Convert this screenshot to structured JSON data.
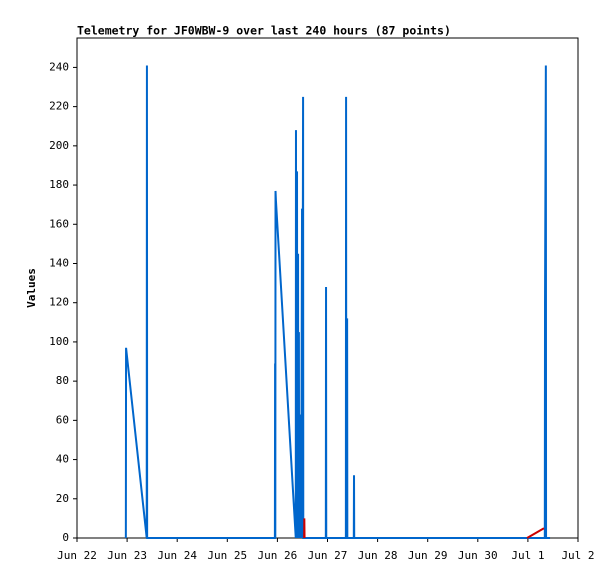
{
  "chart_data": {
    "type": "line",
    "title": "Telemetry for JF0WBW-9 over last 240 hours (87 points)",
    "y_label": "Values",
    "xlim": [
      0,
      240
    ],
    "xticks": [
      {
        "value": 0,
        "label": "Jun 22"
      },
      {
        "value": 24,
        "label": "Jun 23"
      },
      {
        "value": 48,
        "label": "Jun 24"
      },
      {
        "value": 72,
        "label": "Jun 25"
      },
      {
        "value": 96,
        "label": "Jun 26"
      },
      {
        "value": 120,
        "label": "Jun 27"
      },
      {
        "value": 144,
        "label": "Jun 28"
      },
      {
        "value": 168,
        "label": "Jun 29"
      },
      {
        "value": 192,
        "label": "Jun 30"
      },
      {
        "value": 216,
        "label": "Jul 1"
      },
      {
        "value": 240,
        "label": "Jul 2"
      }
    ],
    "ylim": [
      0,
      255
    ],
    "yticks": [
      0,
      20,
      40,
      60,
      80,
      100,
      120,
      140,
      160,
      180,
      200,
      220,
      240
    ],
    "grid": false,
    "series": [
      {
        "color": "#0066cc",
        "x": [
          23.4,
          23.5,
          33.4,
          33.5,
          33.6,
          94.8,
          94.9,
          95.0,
          95.1,
          95.3,
          104.8,
          104.9,
          105.0,
          105.4,
          105.5,
          105.9,
          106.0,
          106.3,
          106.4,
          106.8,
          106.9,
          107.3,
          107.4,
          107.8,
          107.9,
          108.3,
          108.4,
          119.2,
          119.3,
          119.4,
          128.8,
          128.9,
          129.0,
          129.4,
          129.5,
          132.6,
          132.7,
          132.8,
          224.1,
          224.2,
          224.6,
          224.7,
          226.6
        ],
        "values": [
          0,
          97,
          0,
          241,
          0,
          0,
          89,
          0,
          177,
          172,
          0,
          208,
          0,
          187,
          0,
          145,
          0,
          105,
          0,
          20,
          0,
          63,
          0,
          168,
          0,
          225,
          0,
          0,
          128,
          0,
          0,
          225,
          0,
          112,
          0,
          0,
          32,
          0,
          0,
          120,
          241,
          0,
          0
        ]
      },
      {
        "color": "#cc0000",
        "x": [
          108.8,
          108.9,
          109.0,
          null,
          215.6,
          223.7
        ],
        "values": [
          0,
          10,
          0,
          null,
          0,
          5
        ]
      }
    ]
  }
}
